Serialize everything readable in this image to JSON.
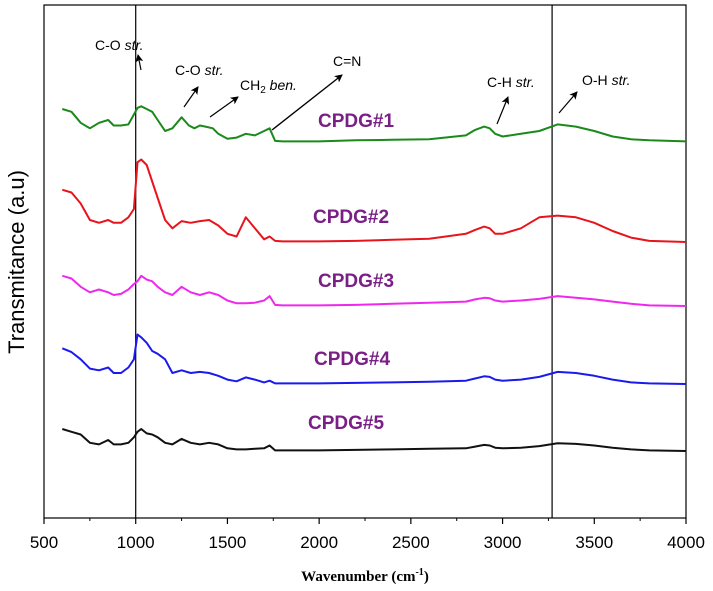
{
  "chart_data": {
    "type": "line",
    "title": "",
    "xlabel": "Wavenumber (cm",
    "xlabel_sup": "-1",
    "xlabel_suffix": ")",
    "ylabel": "Transmitance (a.u)",
    "xlim": [
      500,
      4000
    ],
    "x_ticks": [
      500,
      1000,
      1500,
      2000,
      2500,
      3000,
      3500,
      4000
    ],
    "x_tick_labels": [
      "500",
      "1000",
      "1500",
      "2000",
      "2500",
      "3000",
      "3500",
      "4000"
    ],
    "y_ticks_visible": false,
    "vertical_reference_lines": [
      1000,
      3270
    ],
    "label_color": "#7a1f86",
    "series": [
      {
        "name": "CPDG#1",
        "color": "#1a8a1a",
        "offset": 4,
        "x": [
          600,
          650,
          700,
          750,
          800,
          850,
          880,
          920,
          960,
          990,
          1010,
          1030,
          1060,
          1090,
          1120,
          1160,
          1200,
          1250,
          1290,
          1320,
          1350,
          1380,
          1420,
          1450,
          1500,
          1550,
          1600,
          1650,
          1700,
          1730,
          1760,
          1800,
          2000,
          2200,
          2400,
          2600,
          2800,
          2850,
          2900,
          2930,
          2960,
          3000,
          3100,
          3200,
          3300,
          3400,
          3500,
          3600,
          3700,
          3800,
          4000
        ],
        "y": [
          0.6,
          0.55,
          0.35,
          0.25,
          0.35,
          0.4,
          0.3,
          0.3,
          0.32,
          0.5,
          0.62,
          0.65,
          0.6,
          0.55,
          0.4,
          0.2,
          0.25,
          0.45,
          0.3,
          0.25,
          0.3,
          0.28,
          0.25,
          0.15,
          0.06,
          0.08,
          0.15,
          0.12,
          0.2,
          0.25,
          0.02,
          0.01,
          0.01,
          0.03,
          0.04,
          0.05,
          0.12,
          0.22,
          0.28,
          0.25,
          0.15,
          0.1,
          0.15,
          0.2,
          0.32,
          0.28,
          0.2,
          0.1,
          0.05,
          0.03,
          0.01
        ]
      },
      {
        "name": "CPDG#2",
        "color": "#e8141c",
        "offset": 3,
        "x": [
          600,
          650,
          700,
          750,
          800,
          850,
          880,
          920,
          960,
          990,
          1010,
          1030,
          1060,
          1090,
          1120,
          1160,
          1200,
          1250,
          1300,
          1350,
          1400,
          1450,
          1500,
          1550,
          1600,
          1650,
          1700,
          1730,
          1760,
          1800,
          2000,
          2200,
          2400,
          2600,
          2800,
          2850,
          2900,
          2930,
          2960,
          3000,
          3100,
          3200,
          3300,
          3400,
          3500,
          3600,
          3700,
          3800,
          4000
        ],
        "y": [
          0.95,
          0.9,
          0.7,
          0.4,
          0.35,
          0.4,
          0.35,
          0.35,
          0.45,
          0.6,
          1.45,
          1.5,
          1.4,
          1.1,
          0.8,
          0.4,
          0.25,
          0.38,
          0.35,
          0.38,
          0.4,
          0.3,
          0.15,
          0.1,
          0.45,
          0.25,
          0.05,
          0.1,
          0.02,
          0.01,
          0.01,
          0.02,
          0.04,
          0.06,
          0.15,
          0.22,
          0.28,
          0.25,
          0.15,
          0.15,
          0.25,
          0.45,
          0.48,
          0.45,
          0.35,
          0.2,
          0.08,
          0.02,
          0.0
        ]
      },
      {
        "name": "CPDG#3",
        "color": "#ee28ee",
        "offset": 2,
        "x": [
          600,
          650,
          700,
          750,
          800,
          850,
          880,
          920,
          960,
          990,
          1010,
          1030,
          1060,
          1090,
          1120,
          1160,
          1200,
          1250,
          1300,
          1350,
          1400,
          1450,
          1500,
          1550,
          1600,
          1650,
          1700,
          1730,
          1760,
          1800,
          2000,
          2200,
          2400,
          2600,
          2800,
          2850,
          2900,
          2930,
          2960,
          3000,
          3100,
          3200,
          3300,
          3400,
          3500,
          3600,
          3700,
          3800,
          4000
        ],
        "y": [
          0.55,
          0.5,
          0.35,
          0.25,
          0.3,
          0.25,
          0.2,
          0.22,
          0.3,
          0.4,
          0.45,
          0.55,
          0.48,
          0.45,
          0.35,
          0.25,
          0.2,
          0.35,
          0.25,
          0.2,
          0.25,
          0.2,
          0.1,
          0.05,
          0.05,
          0.06,
          0.1,
          0.18,
          0.02,
          0.01,
          0.01,
          0.02,
          0.04,
          0.06,
          0.08,
          0.12,
          0.15,
          0.14,
          0.1,
          0.08,
          0.1,
          0.13,
          0.18,
          0.15,
          0.12,
          0.08,
          0.04,
          0.01,
          0.0
        ]
      },
      {
        "name": "CPDG#4",
        "color": "#1a1aee",
        "offset": 1,
        "x": [
          600,
          650,
          700,
          750,
          800,
          850,
          880,
          920,
          960,
          990,
          1010,
          1030,
          1060,
          1090,
          1120,
          1160,
          1200,
          1250,
          1300,
          1350,
          1400,
          1450,
          1500,
          1550,
          1600,
          1650,
          1700,
          1730,
          1760,
          1800,
          2000,
          2200,
          2400,
          2600,
          2800,
          2850,
          2900,
          2930,
          2960,
          3000,
          3100,
          3200,
          3300,
          3400,
          3500,
          3600,
          3700,
          3800,
          4000
        ],
        "y": [
          0.65,
          0.58,
          0.45,
          0.28,
          0.25,
          0.3,
          0.2,
          0.2,
          0.3,
          0.45,
          0.9,
          0.85,
          0.75,
          0.6,
          0.55,
          0.45,
          0.2,
          0.25,
          0.2,
          0.22,
          0.2,
          0.15,
          0.08,
          0.05,
          0.12,
          0.08,
          0.03,
          0.06,
          0.01,
          0.01,
          0.01,
          0.02,
          0.03,
          0.04,
          0.06,
          0.1,
          0.14,
          0.13,
          0.08,
          0.06,
          0.08,
          0.13,
          0.22,
          0.2,
          0.15,
          0.08,
          0.03,
          0.01,
          0.0
        ]
      },
      {
        "name": "CPDG#5",
        "color": "#111111",
        "offset": 0,
        "x": [
          600,
          650,
          700,
          750,
          800,
          850,
          880,
          920,
          960,
          990,
          1010,
          1030,
          1060,
          1090,
          1120,
          1160,
          1200,
          1250,
          1300,
          1350,
          1400,
          1450,
          1500,
          1550,
          1600,
          1650,
          1700,
          1730,
          1760,
          1800,
          2000,
          2200,
          2400,
          2600,
          2800,
          2850,
          2900,
          2930,
          2960,
          3000,
          3100,
          3200,
          3300,
          3400,
          3500,
          3600,
          3700,
          3800,
          4000
        ],
        "y": [
          0.4,
          0.35,
          0.3,
          0.15,
          0.12,
          0.2,
          0.12,
          0.12,
          0.15,
          0.25,
          0.35,
          0.4,
          0.32,
          0.3,
          0.25,
          0.15,
          0.12,
          0.22,
          0.15,
          0.12,
          0.15,
          0.12,
          0.05,
          0.03,
          0.03,
          0.04,
          0.05,
          0.1,
          0.01,
          0.01,
          0.01,
          0.02,
          0.03,
          0.04,
          0.05,
          0.08,
          0.11,
          0.1,
          0.06,
          0.05,
          0.06,
          0.09,
          0.14,
          0.13,
          0.1,
          0.06,
          0.03,
          0.01,
          0.0
        ]
      }
    ],
    "annotations": [
      {
        "id": "co1",
        "pre": "C-O ",
        "it": "str.",
        "sub": "",
        "post": "",
        "x": 1020
      },
      {
        "id": "co2",
        "pre": "C-O ",
        "it": "str.",
        "sub": "",
        "post": "",
        "x": 1250
      },
      {
        "id": "ch2",
        "pre": "CH",
        "it": "",
        "sub": "2",
        "post": " ben.",
        "x": 1420
      },
      {
        "id": "cn",
        "pre": "C=N",
        "it": "",
        "sub": "",
        "post": "",
        "x": 1735
      },
      {
        "id": "ch",
        "pre": "C-H ",
        "it": "str.",
        "sub": "",
        "post": "",
        "x": 2930
      },
      {
        "id": "oh",
        "pre": "O-H ",
        "it": "str.",
        "sub": "",
        "post": "",
        "x": 3300
      }
    ]
  }
}
